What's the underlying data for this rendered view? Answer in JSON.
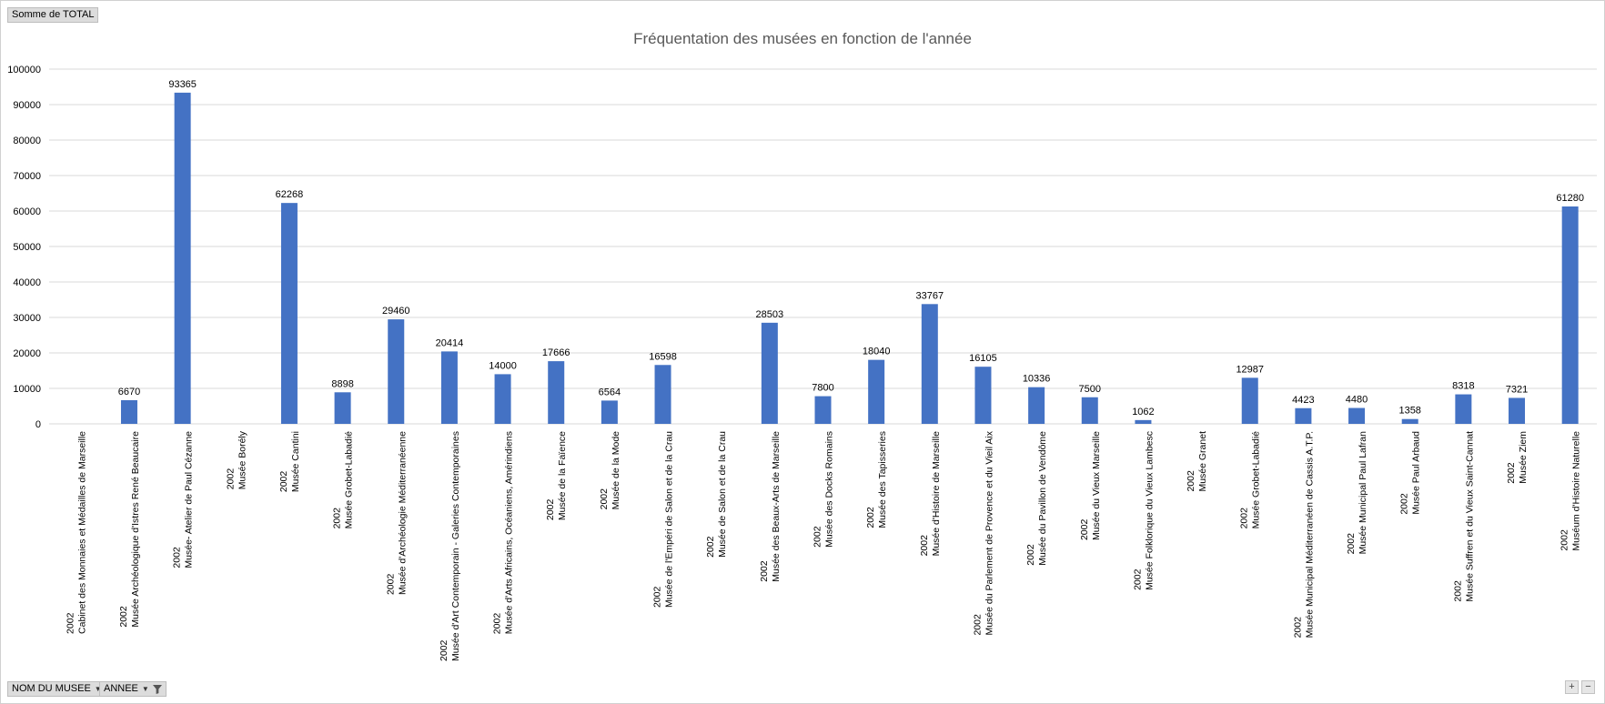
{
  "header": {
    "value_field_label": "Somme  de TOTAL"
  },
  "footer": {
    "filters": [
      {
        "label": "NOM DU MUSEE",
        "icon": "dropdown-arrow-icon"
      },
      {
        "label": "ANNEE",
        "icon": "filter-funnel-icon"
      }
    ],
    "zoom_in": "+",
    "zoom_out": "−"
  },
  "colors": {
    "bar": "#4472c4",
    "grid": "#d9d9d9",
    "title": "#595959"
  },
  "chart_data": {
    "type": "bar",
    "title": "Fréquentation des musées en fonction de l'année",
    "xlabel": "",
    "ylabel": "",
    "ylim": [
      0,
      100000
    ],
    "yticks": [
      0,
      10000,
      20000,
      30000,
      40000,
      50000,
      60000,
      70000,
      80000,
      90000,
      100000
    ],
    "grid": true,
    "categories": [
      {
        "year": "2002",
        "name": "Cabinet des Monnaies et Médailles de Marseille"
      },
      {
        "year": "2002",
        "name": "Musée Archéologique d'Istres René Beaucaire"
      },
      {
        "year": "2002",
        "name": "Musée- Atelier de Paul Cézanne"
      },
      {
        "year": "2002",
        "name": "Musée Borély"
      },
      {
        "year": "2002",
        "name": "Musée Cantini"
      },
      {
        "year": "2002",
        "name": "Musée Grobet-Labadié"
      },
      {
        "year": "2002",
        "name": "Musée d'Archéologie Méditerranéenne"
      },
      {
        "year": "2002",
        "name": "Musée d'Art Contemporain - Galeries Contemporaines"
      },
      {
        "year": "2002",
        "name": "Musée d'Arts Africains, Océaniens, Amérindiens"
      },
      {
        "year": "2002",
        "name": "Musée de la Faïence"
      },
      {
        "year": "2002",
        "name": "Musée de la Mode"
      },
      {
        "year": "2002",
        "name": "Musée de l'Empéri de Salon et de la Crau"
      },
      {
        "year": "2002",
        "name": "Musée de Salon et de la Crau"
      },
      {
        "year": "2002",
        "name": "Musée des Beaux-Arts de Marseille"
      },
      {
        "year": "2002",
        "name": "Musée des Docks Romains"
      },
      {
        "year": "2002",
        "name": "Musée des Tapisseries"
      },
      {
        "year": "2002",
        "name": "Musée d'Histoire de Marseille"
      },
      {
        "year": "2002",
        "name": "Musée du Parlement de Provence et du Vieil Aix"
      },
      {
        "year": "2002",
        "name": "Musée du Pavillon de Vendôme"
      },
      {
        "year": "2002",
        "name": "Musée du Vieux Marseille"
      },
      {
        "year": "2002",
        "name": "Musée Folklorique du Vieux Lambesc"
      },
      {
        "year": "2002",
        "name": "Musée Granet"
      },
      {
        "year": "2002",
        "name": "Musée Grobet-Labadié"
      },
      {
        "year": "2002",
        "name": "Musée Municipal Méditerranéen de Cassis A.T.P."
      },
      {
        "year": "2002",
        "name": "Musée Municipal Paul Lafran"
      },
      {
        "year": "2002",
        "name": "Musée Paul Arbaud"
      },
      {
        "year": "2002",
        "name": "Musée Suffren et du Vieux Saint-Cannat"
      },
      {
        "year": "2002",
        "name": "Musée Ziem"
      },
      {
        "year": "2002",
        "name": "Muséum d'Histoire Naturelle"
      }
    ],
    "series": [
      {
        "values": [
          null,
          6670,
          93365,
          null,
          62268,
          8898,
          29460,
          20414,
          14000,
          17666,
          6564,
          16598,
          null,
          28503,
          7800,
          18040,
          33767,
          16105,
          10336,
          7500,
          1062,
          null,
          12987,
          4423,
          4480,
          1358,
          8318,
          7321,
          61280
        ],
        "labels": [
          "",
          "6670",
          "93365",
          "",
          "62268",
          "8898",
          "29460",
          "20414",
          "14000",
          "17666",
          "6564",
          "16598",
          "",
          "28503",
          "7800",
          "18040",
          "33767",
          "16105",
          "10336",
          "7500",
          "1062",
          "",
          "12987",
          "4423",
          "4480",
          "1358",
          "8318",
          "7321",
          "61280"
        ]
      }
    ]
  }
}
